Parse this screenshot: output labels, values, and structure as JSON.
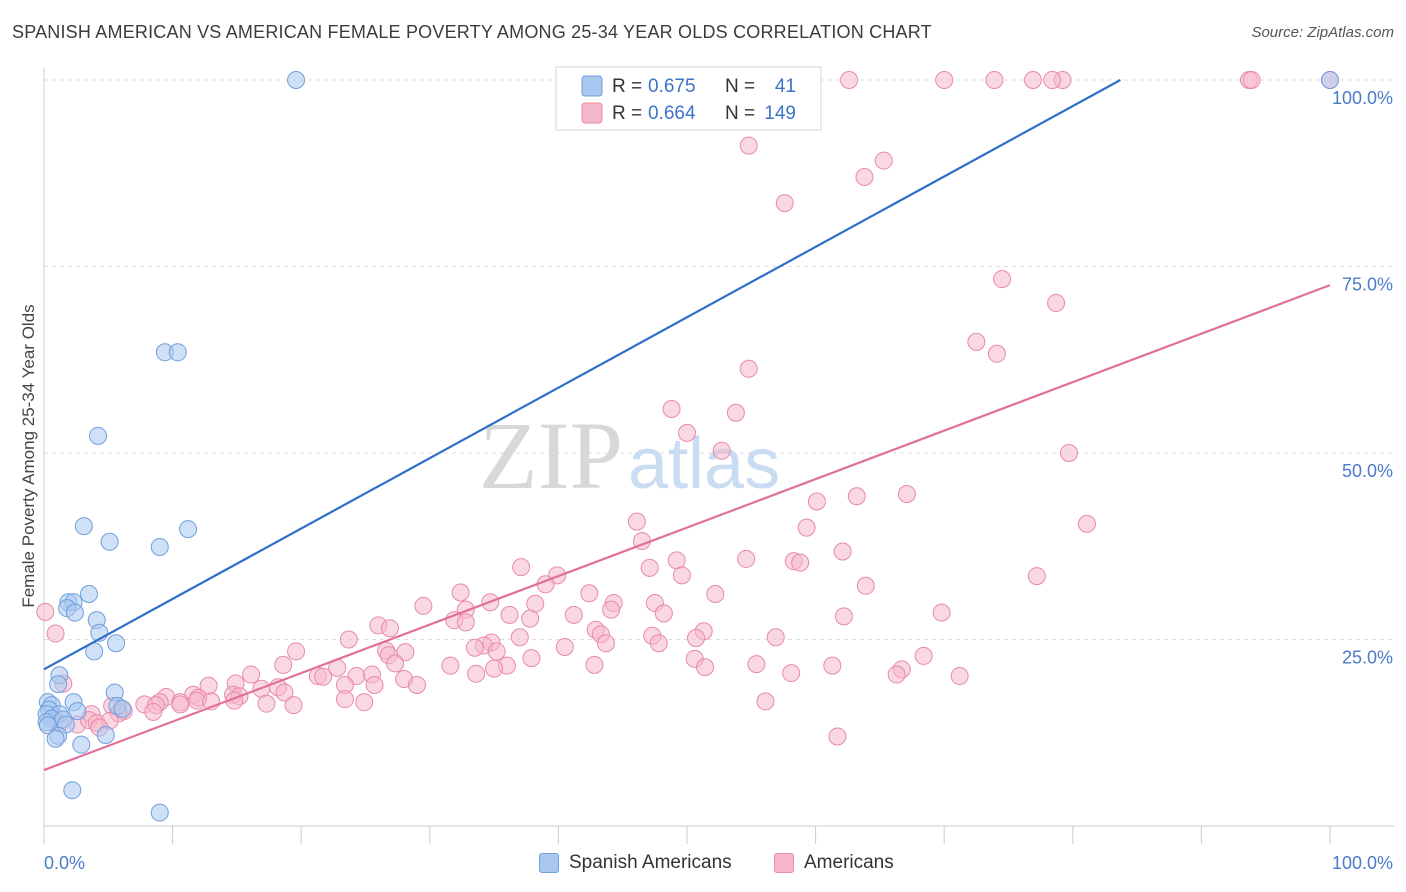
{
  "title": "SPANISH AMERICAN VS AMERICAN FEMALE POVERTY AMONG 25-34 YEAR OLDS CORRELATION CHART",
  "source": "Source: ZipAtlas.com",
  "watermark": {
    "zip": "ZIP",
    "atlas": "atlas"
  },
  "colors": {
    "blue_fill": "#a9c8f0",
    "blue_stroke": "#6f9fdc",
    "blue_line": "#2f6fca",
    "pink_fill": "#f6b8cc",
    "pink_stroke": "#e88aa8",
    "pink_line": "#e0709a",
    "axis_text": "#4a7cc9",
    "grid": "#dddddd"
  },
  "legend": {
    "rows": [
      {
        "r_label": "R =",
        "r_value": "0.675",
        "n_label": "N =",
        "n_value": "41"
      },
      {
        "r_label": "R =",
        "r_value": "0.664",
        "n_label": "N =",
        "n_value": "149"
      }
    ]
  },
  "bottom_legend": {
    "blue": "Spanish Americans",
    "pink": "Americans"
  },
  "chart_data": {
    "type": "scatter",
    "xlabel": "",
    "ylabel": "Female Poverty Among 25-34 Year Olds",
    "xlim": [
      0,
      100
    ],
    "ylim": [
      0,
      100
    ],
    "x_tick_labels": [
      "0.0%",
      "100.0%"
    ],
    "y_tick_labels": [
      "25.0%",
      "50.0%",
      "75.0%",
      "100.0%"
    ],
    "y_ticks": [
      25,
      50,
      75,
      100
    ],
    "grid": true,
    "series": [
      {
        "name": "Spanish Americans",
        "color": "blue",
        "trend": [
          [
            0,
            21.0
          ],
          [
            83.7,
            100
          ]
        ],
        "points": [
          [
            19.6,
            100
          ],
          [
            100,
            100
          ],
          [
            9.4,
            63.5
          ],
          [
            10.4,
            63.5
          ],
          [
            4.2,
            52.3
          ],
          [
            3.1,
            40.2
          ],
          [
            11.2,
            39.8
          ],
          [
            5.1,
            38.1
          ],
          [
            9.0,
            37.4
          ],
          [
            3.5,
            31.1
          ],
          [
            1.9,
            30.0
          ],
          [
            2.3,
            30.0
          ],
          [
            1.8,
            29.2
          ],
          [
            2.4,
            28.6
          ],
          [
            4.1,
            27.6
          ],
          [
            4.3,
            25.9
          ],
          [
            5.6,
            24.5
          ],
          [
            3.9,
            23.4
          ],
          [
            1.2,
            20.2
          ],
          [
            1.1,
            19.0
          ],
          [
            5.5,
            17.9
          ],
          [
            0.3,
            16.6
          ],
          [
            0.6,
            16.2
          ],
          [
            2.3,
            16.6
          ],
          [
            5.7,
            16.1
          ],
          [
            0.4,
            15.6
          ],
          [
            1.2,
            15.0
          ],
          [
            2.6,
            15.4
          ],
          [
            6.1,
            15.7
          ],
          [
            0.2,
            15.0
          ],
          [
            0.6,
            14.4
          ],
          [
            1.5,
            14.3
          ],
          [
            1.7,
            13.6
          ],
          [
            0.2,
            13.9
          ],
          [
            0.3,
            13.5
          ],
          [
            1.1,
            12.1
          ],
          [
            0.9,
            11.7
          ],
          [
            4.8,
            12.2
          ],
          [
            2.9,
            10.9
          ],
          [
            2.2,
            4.8
          ],
          [
            9.0,
            1.8
          ]
        ]
      },
      {
        "name": "Americans",
        "color": "pink",
        "trend": [
          [
            0,
            7.5
          ],
          [
            100,
            72.5
          ]
        ],
        "points": [
          [
            52.3,
            100
          ],
          [
            62.6,
            100
          ],
          [
            70.0,
            100
          ],
          [
            76.9,
            100
          ],
          [
            73.9,
            100
          ],
          [
            79.2,
            100
          ],
          [
            78.4,
            100
          ],
          [
            93.7,
            100
          ],
          [
            93.9,
            100
          ],
          [
            100,
            100
          ],
          [
            54.1,
            99.5
          ],
          [
            54.9,
            99.5
          ],
          [
            54.8,
            91.2
          ],
          [
            65.3,
            89.2
          ],
          [
            63.8,
            87.0
          ],
          [
            57.6,
            83.5
          ],
          [
            74.5,
            73.3
          ],
          [
            78.7,
            70.1
          ],
          [
            72.5,
            64.9
          ],
          [
            74.1,
            63.3
          ],
          [
            54.8,
            61.3
          ],
          [
            48.8,
            55.9
          ],
          [
            53.8,
            55.4
          ],
          [
            50.0,
            52.7
          ],
          [
            52.7,
            50.3
          ],
          [
            79.7,
            50.0
          ],
          [
            63.2,
            44.2
          ],
          [
            67.1,
            44.5
          ],
          [
            60.1,
            43.5
          ],
          [
            46.1,
            40.8
          ],
          [
            59.3,
            40.0
          ],
          [
            81.1,
            40.5
          ],
          [
            46.5,
            38.2
          ],
          [
            62.1,
            36.8
          ],
          [
            54.6,
            35.8
          ],
          [
            49.2,
            35.6
          ],
          [
            58.3,
            35.5
          ],
          [
            58.8,
            35.3
          ],
          [
            37.1,
            34.7
          ],
          [
            47.1,
            34.6
          ],
          [
            39.9,
            33.6
          ],
          [
            49.6,
            33.6
          ],
          [
            77.2,
            33.5
          ],
          [
            39.0,
            32.4
          ],
          [
            63.9,
            32.2
          ],
          [
            32.4,
            31.3
          ],
          [
            42.4,
            31.2
          ],
          [
            52.2,
            31.1
          ],
          [
            34.7,
            30.0
          ],
          [
            38.2,
            29.8
          ],
          [
            44.3,
            29.9
          ],
          [
            47.5,
            29.9
          ],
          [
            29.5,
            29.5
          ],
          [
            32.8,
            29.0
          ],
          [
            44.1,
            29.0
          ],
          [
            36.2,
            28.3
          ],
          [
            41.2,
            28.3
          ],
          [
            48.2,
            28.5
          ],
          [
            62.2,
            28.1
          ],
          [
            69.8,
            28.6
          ],
          [
            31.9,
            27.6
          ],
          [
            32.8,
            27.3
          ],
          [
            37.8,
            27.8
          ],
          [
            26.0,
            26.9
          ],
          [
            26.9,
            26.5
          ],
          [
            42.9,
            26.3
          ],
          [
            37.0,
            25.3
          ],
          [
            47.3,
            25.5
          ],
          [
            51.3,
            26.1
          ],
          [
            43.3,
            25.7
          ],
          [
            23.7,
            25.0
          ],
          [
            34.8,
            24.6
          ],
          [
            43.7,
            24.5
          ],
          [
            47.8,
            24.5
          ],
          [
            50.7,
            25.2
          ],
          [
            56.9,
            25.3
          ],
          [
            26.6,
            23.5
          ],
          [
            34.2,
            24.2
          ],
          [
            40.5,
            24.0
          ],
          [
            33.5,
            23.9
          ],
          [
            28.1,
            23.3
          ],
          [
            19.6,
            23.4
          ],
          [
            35.2,
            23.4
          ],
          [
            26.8,
            22.9
          ],
          [
            37.9,
            22.5
          ],
          [
            50.6,
            22.4
          ],
          [
            68.4,
            22.8
          ],
          [
            27.3,
            21.8
          ],
          [
            31.6,
            21.5
          ],
          [
            36.0,
            21.5
          ],
          [
            18.6,
            21.6
          ],
          [
            22.8,
            21.2
          ],
          [
            35.0,
            21.1
          ],
          [
            66.7,
            21.0
          ],
          [
            51.4,
            21.3
          ],
          [
            55.4,
            21.7
          ],
          [
            61.3,
            21.5
          ],
          [
            16.1,
            20.3
          ],
          [
            21.3,
            20.1
          ],
          [
            21.7,
            20.0
          ],
          [
            24.3,
            20.1
          ],
          [
            25.5,
            20.3
          ],
          [
            33.6,
            20.4
          ],
          [
            58.1,
            20.5
          ],
          [
            42.8,
            21.6
          ],
          [
            66.3,
            20.3
          ],
          [
            71.2,
            20.1
          ],
          [
            14.9,
            19.1
          ],
          [
            12.8,
            18.8
          ],
          [
            23.4,
            18.9
          ],
          [
            25.7,
            18.9
          ],
          [
            28.0,
            19.7
          ],
          [
            29.0,
            18.9
          ],
          [
            16.9,
            18.4
          ],
          [
            18.2,
            18.6
          ],
          [
            9.5,
            17.3
          ],
          [
            11.6,
            17.6
          ],
          [
            14.7,
            17.6
          ],
          [
            12.0,
            17.2
          ],
          [
            15.2,
            17.4
          ],
          [
            18.7,
            17.9
          ],
          [
            23.4,
            17.0
          ],
          [
            11.9,
            16.8
          ],
          [
            14.8,
            16.8
          ],
          [
            9.0,
            16.6
          ],
          [
            10.6,
            16.6
          ],
          [
            13.0,
            16.7
          ],
          [
            24.9,
            16.6
          ],
          [
            5.3,
            16.1
          ],
          [
            7.8,
            16.3
          ],
          [
            8.7,
            16.2
          ],
          [
            10.6,
            16.3
          ],
          [
            17.3,
            16.4
          ],
          [
            19.4,
            16.2
          ],
          [
            6.2,
            15.4
          ],
          [
            5.8,
            15.1
          ],
          [
            8.5,
            15.3
          ],
          [
            3.7,
            15.0
          ],
          [
            0.8,
            14.7
          ],
          [
            1.2,
            13.8
          ],
          [
            2.6,
            13.6
          ],
          [
            3.5,
            14.2
          ],
          [
            4.1,
            13.8
          ],
          [
            5.1,
            14.1
          ],
          [
            4.3,
            13.2
          ],
          [
            0.1,
            28.7
          ],
          [
            0.9,
            25.8
          ],
          [
            1.5,
            19.1
          ],
          [
            56.1,
            16.7
          ],
          [
            61.7,
            12.0
          ]
        ]
      }
    ]
  }
}
